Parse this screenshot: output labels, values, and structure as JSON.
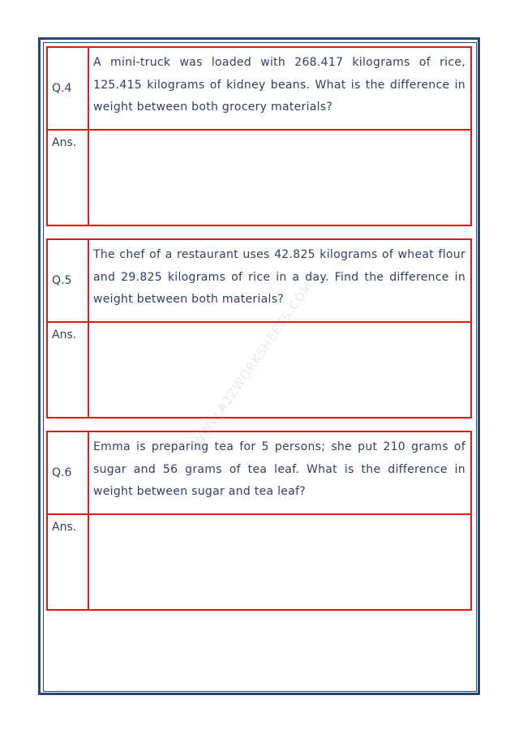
{
  "watermark": "WWW.A2ZWORKSHEETS.COM",
  "questions": [
    {
      "label": "Q.4",
      "text": "A mini-truck was loaded with 268.417 kilograms of rice, 125.415 kilograms of kidney beans. What is the difference in weight between both grocery materials?",
      "answer_label": "Ans."
    },
    {
      "label": "Q.5",
      "text": "The chef of a restaurant uses 42.825 kilograms of wheat flour and 29.825 kilograms of rice in a day. Find the difference in weight between both materials?",
      "answer_label": "Ans."
    },
    {
      "label": "Q.6",
      "text": "Emma is preparing tea for 5 persons; she put 210 grams of sugar and 56 grams of tea leaf. What is the difference in weight between sugar and tea leaf?",
      "answer_label": "Ans."
    }
  ]
}
